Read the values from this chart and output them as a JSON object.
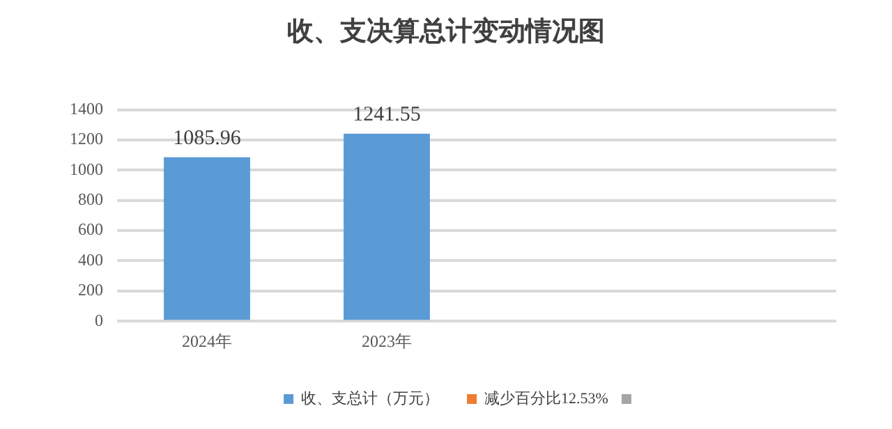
{
  "chart_data": {
    "type": "bar",
    "title": "收、支决算总计变动情况图",
    "categories": [
      "2024年",
      "2023年",
      null,
      null
    ],
    "series": [
      {
        "name": "收、支总计（万元）",
        "color": "#5b9bd5",
        "values": [
          1085.96,
          1241.55,
          null,
          null
        ]
      },
      {
        "name": "减少百分比12.53%",
        "color": "#ed7d31",
        "values": [
          null,
          null,
          null,
          null
        ]
      }
    ],
    "ylim": [
      0,
      1400
    ],
    "yticks": [
      0,
      200,
      400,
      600,
      800,
      1000,
      1200,
      1400
    ],
    "grid": "y",
    "legend": "bottom",
    "data_labels": true
  }
}
